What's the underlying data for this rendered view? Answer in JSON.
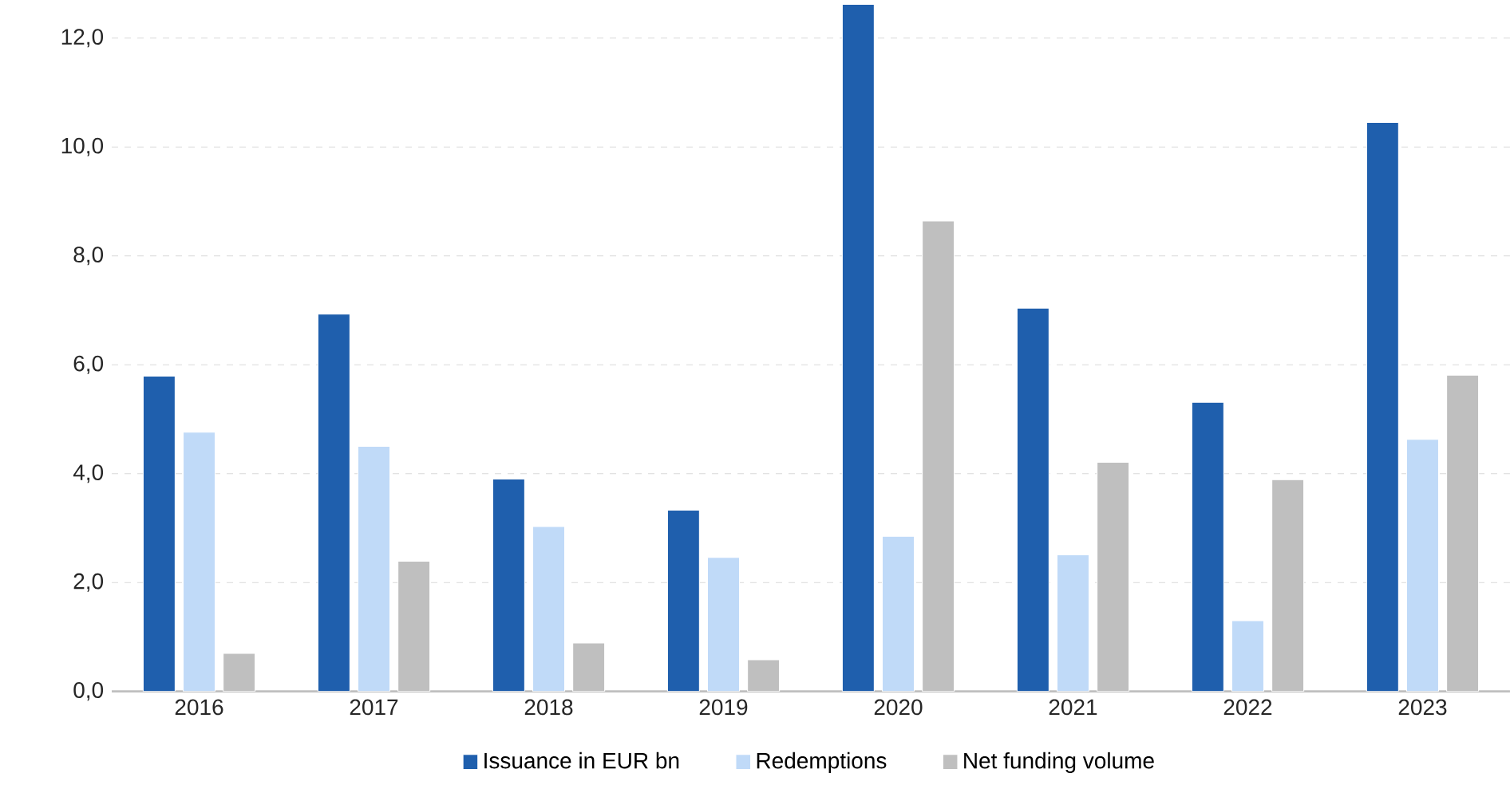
{
  "chart_data": {
    "type": "bar",
    "categories": [
      "2016",
      "2017",
      "2018",
      "2019",
      "2020",
      "2021",
      "2022",
      "2023"
    ],
    "series": [
      {
        "name": "Issuance in EUR bn",
        "color": "#1f5fad",
        "values": [
          5.79,
          6.93,
          3.9,
          3.33,
          12.62,
          7.04,
          5.31,
          10.45
        ]
      },
      {
        "name": "Redemptions",
        "color": "#c0daf8",
        "values": [
          4.76,
          4.5,
          3.03,
          2.46,
          2.85,
          2.51,
          1.3,
          4.63
        ]
      },
      {
        "name": "Net funding volume",
        "color": "#bfbfbf",
        "values": [
          0.7,
          2.39,
          0.89,
          0.58,
          8.64,
          4.21,
          3.89,
          5.81
        ]
      }
    ],
    "ylim": [
      0,
      12.7
    ],
    "yticks": [
      {
        "value": 0,
        "label": "0,0"
      },
      {
        "value": 2,
        "label": "2,0"
      },
      {
        "value": 4,
        "label": "4,0"
      },
      {
        "value": 6,
        "label": "6,0"
      },
      {
        "value": 8,
        "label": "8,0"
      },
      {
        "value": 10,
        "label": "10,0"
      },
      {
        "value": 12,
        "label": "12,0"
      }
    ],
    "grid": "y",
    "legend": "bottom"
  }
}
